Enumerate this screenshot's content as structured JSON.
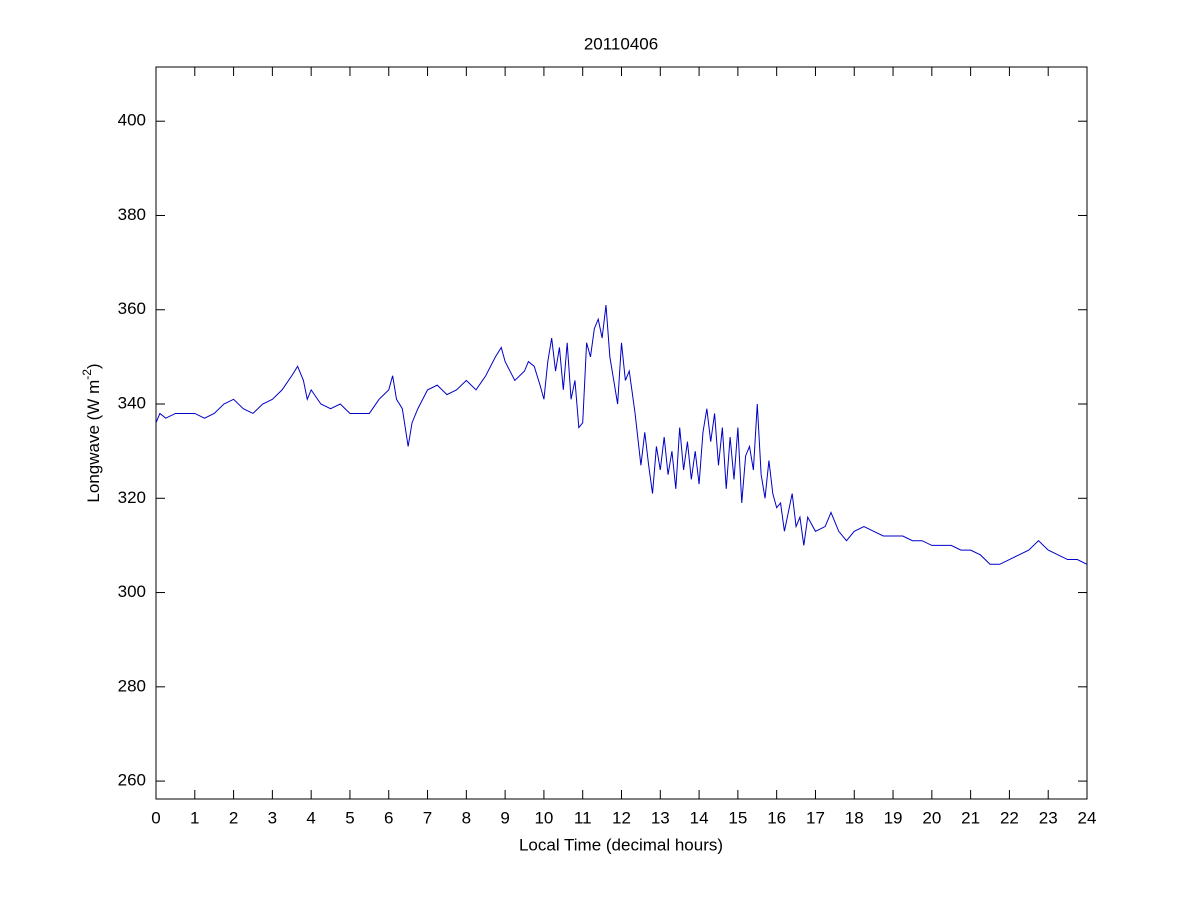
{
  "chart_data": {
    "type": "line",
    "title": "20110406",
    "x_label": "Local Time (decimal hours)",
    "y_label_parts": [
      "Longwave (W m",
      "-2",
      ")"
    ],
    "xlim": [
      0,
      24
    ],
    "ylim": [
      256.2,
      411.5
    ],
    "xticks": [
      0,
      1,
      2,
      3,
      4,
      5,
      6,
      7,
      8,
      9,
      10,
      11,
      12,
      13,
      14,
      15,
      16,
      17,
      18,
      19,
      20,
      21,
      22,
      23,
      24
    ],
    "yticks": [
      260,
      280,
      300,
      320,
      340,
      360,
      380,
      400
    ],
    "series": [
      {
        "color": "#0000c8",
        "x": [
          0,
          0.1,
          0.25,
          0.5,
          0.75,
          1,
          1.25,
          1.5,
          1.75,
          2,
          2.25,
          2.5,
          2.75,
          3,
          3.25,
          3.5,
          3.65,
          3.8,
          3.9,
          4,
          4.25,
          4.5,
          4.75,
          5,
          5.25,
          5.5,
          5.75,
          6,
          6.1,
          6.2,
          6.35,
          6.5,
          6.6,
          6.75,
          7,
          7.25,
          7.5,
          7.75,
          8,
          8.25,
          8.5,
          8.75,
          8.9,
          9,
          9.25,
          9.5,
          9.6,
          9.75,
          9.9,
          10,
          10.1,
          10.2,
          10.3,
          10.4,
          10.5,
          10.6,
          10.7,
          10.8,
          10.9,
          11,
          11.1,
          11.2,
          11.3,
          11.4,
          11.5,
          11.6,
          11.7,
          11.8,
          11.9,
          12,
          12.1,
          12.2,
          12.35,
          12.5,
          12.6,
          12.7,
          12.8,
          12.9,
          13,
          13.1,
          13.2,
          13.3,
          13.4,
          13.5,
          13.6,
          13.7,
          13.8,
          13.9,
          14,
          14.1,
          14.2,
          14.3,
          14.4,
          14.5,
          14.6,
          14.7,
          14.8,
          14.9,
          15,
          15.1,
          15.2,
          15.3,
          15.4,
          15.5,
          15.6,
          15.7,
          15.8,
          15.9,
          16,
          16.1,
          16.2,
          16.3,
          16.4,
          16.5,
          16.6,
          16.7,
          16.8,
          17,
          17.25,
          17.4,
          17.6,
          17.8,
          18,
          18.25,
          18.5,
          18.75,
          19,
          19.25,
          19.5,
          19.75,
          20,
          20.25,
          20.5,
          20.75,
          21,
          21.25,
          21.5,
          21.75,
          22,
          22.25,
          22.5,
          22.75,
          23,
          23.25,
          23.5,
          23.75,
          24
        ],
        "values": [
          336,
          338,
          337,
          338,
          338,
          338,
          337,
          338,
          340,
          341,
          339,
          338,
          340,
          341,
          343,
          346,
          348,
          345,
          341,
          343,
          340,
          339,
          340,
          338,
          338,
          338,
          341,
          343,
          346,
          341,
          339,
          331,
          336,
          339,
          343,
          344,
          342,
          343,
          345,
          343,
          346,
          350,
          352,
          349,
          345,
          347,
          349,
          348,
          344,
          341,
          349,
          354,
          347,
          352,
          343,
          353,
          341,
          345,
          335,
          336,
          353,
          350,
          356,
          358,
          354,
          361,
          350,
          345,
          340,
          353,
          345,
          347,
          338,
          327,
          334,
          327,
          321,
          331,
          326,
          333,
          325,
          330,
          322,
          335,
          326,
          332,
          324,
          330,
          323,
          334,
          339,
          332,
          338,
          327,
          335,
          322,
          333,
          324,
          335,
          319,
          329,
          331,
          326,
          340,
          325,
          320,
          328,
          321,
          318,
          319,
          313,
          317,
          321,
          314,
          316,
          310,
          316,
          313,
          314,
          317,
          313,
          311,
          313,
          314,
          313,
          312,
          312,
          312,
          311,
          311,
          310,
          310,
          310,
          309,
          309,
          308,
          306,
          306,
          307,
          308,
          309,
          311,
          309,
          308,
          307,
          307,
          306
        ]
      }
    ]
  }
}
